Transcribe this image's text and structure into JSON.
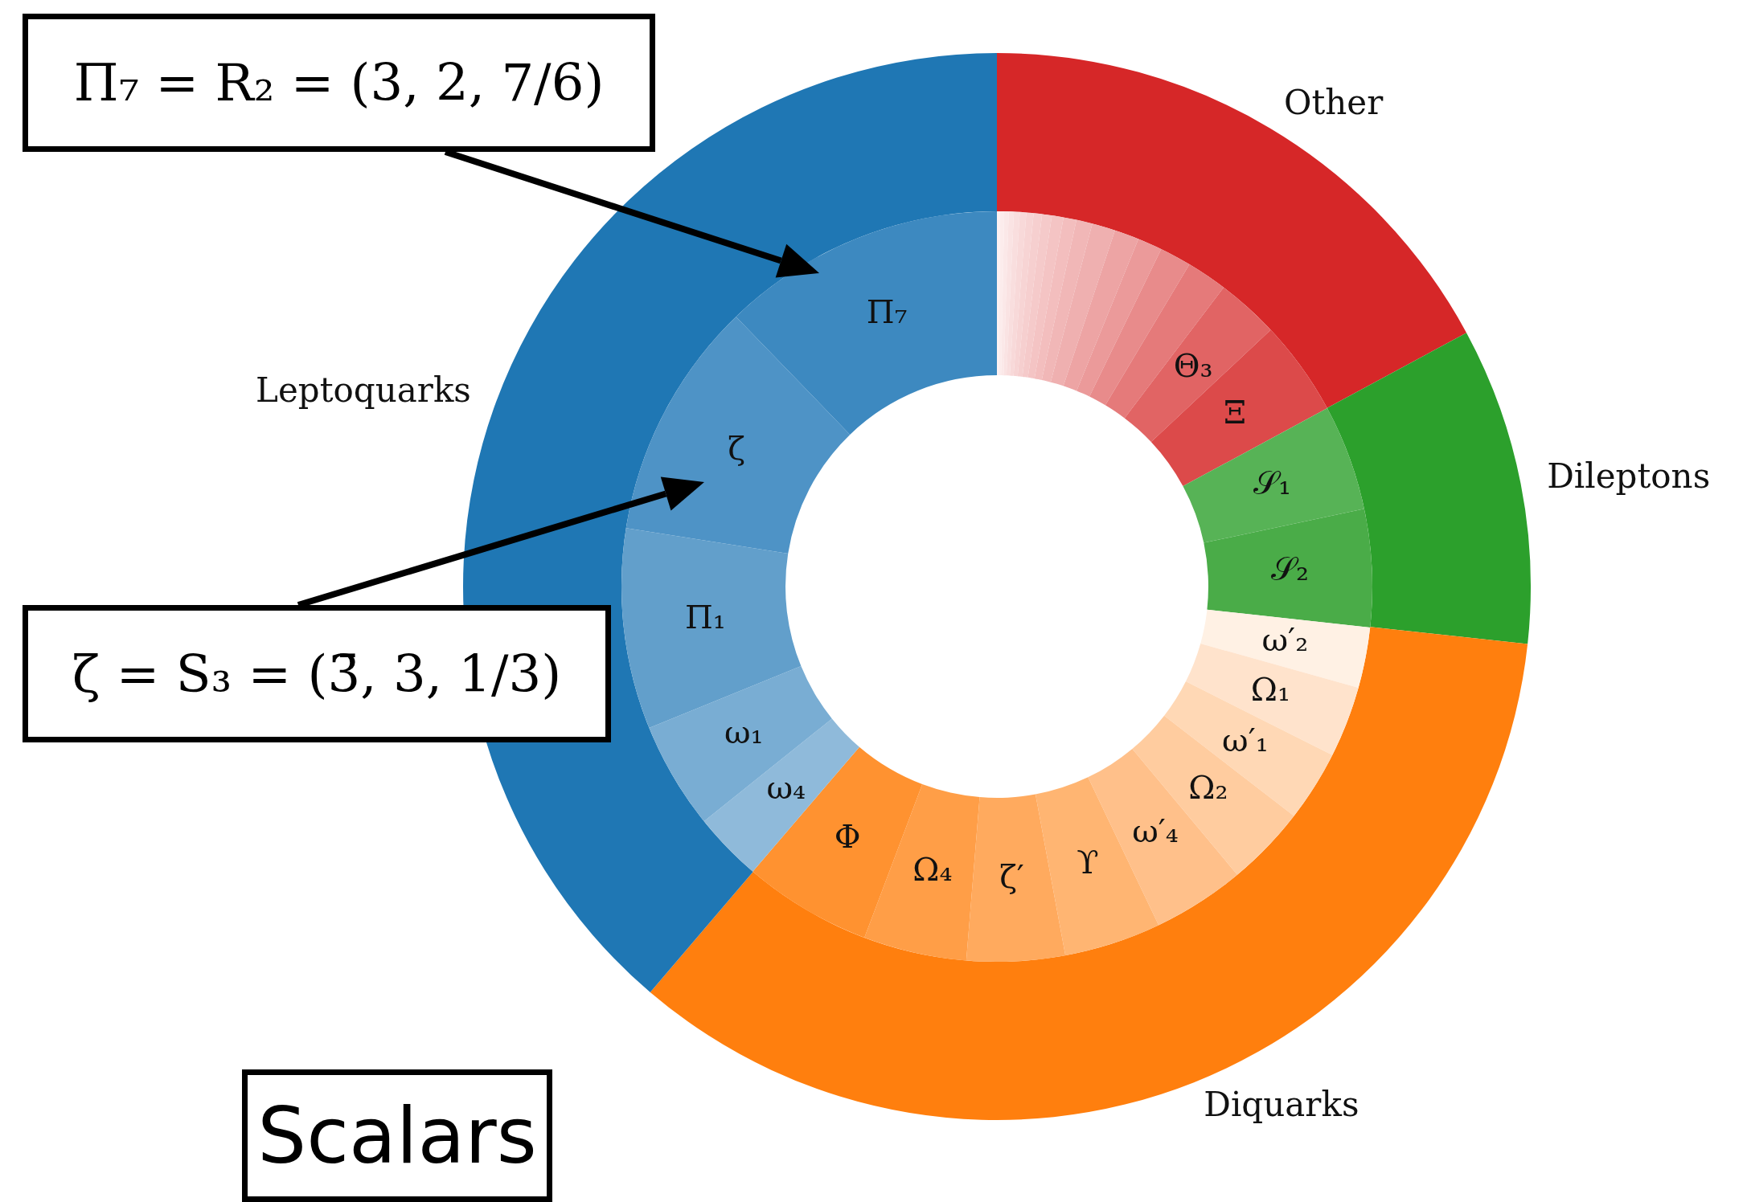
{
  "chart_data": [
    {
      "type": "donut",
      "categories": [
        "Other",
        "Dileptons",
        "Diquarks",
        "Leptoquarks"
      ],
      "values": [
        17.11,
        9.61,
        34.53,
        38.75
      ],
      "colors": [
        "#d62728",
        "#2ca02c",
        "#ff7f0e",
        "#1f77b4"
      ],
      "annotations": [
        "Π₇ = R₂ = (3, 2, 7/6)",
        "ζ = S₃ = (3̄, 3, 1/3)",
        "Scalars"
      ]
    },
    {
      "type": "donut",
      "categories": [
        null,
        null,
        null,
        null,
        null,
        null,
        null,
        null,
        null,
        null,
        null,
        null,
        null,
        null,
        null,
        null,
        null,
        "Θ₃",
        "Ξ",
        "𝒮₁",
        "𝒮₂",
        "ω′₂",
        "Ω₁",
        "ω′₁",
        "Ω₂",
        "ω′₄",
        "ϒ",
        "ζ′",
        "Ω₄",
        "Φ",
        "ω₄",
        "ω₁",
        "Π₁",
        "ζ",
        "Π₇"
      ],
      "values": [
        0.14,
        0.17,
        0.19,
        0.22,
        0.25,
        0.28,
        0.31,
        0.36,
        0.42,
        0.5,
        0.56,
        0.69,
        1.0,
        1.06,
        1.06,
        1.36,
        1.75,
        2.69,
        4.11,
        4.56,
        5.06,
        2.61,
        3.06,
        3.06,
        3.47,
        3.97,
        4.17,
        4.22,
        4.44,
        5.53,
        2.97,
        4.61,
        8.64,
        10.28,
        12.23
      ],
      "colors": [
        "#fdf1f1",
        "#fcecec",
        "#fbe8e8",
        "#fae3e3",
        "#f9dede",
        "#f8d9d9",
        "#f7d4d4",
        "#f6cfcf",
        "#f5caca",
        "#f4c4c4",
        "#f3bebe",
        "#f1b7b7",
        "#efb0b0",
        "#eda4a4",
        "#eb9a9a",
        "#e88b8b",
        "#e57a7a",
        "#e16464",
        "#dc4a4a",
        "#57b356",
        "#4aac48",
        "#fff1e4",
        "#ffe3cc",
        "#ffd8b5",
        "#ffcc9f",
        "#ffc08a",
        "#ffb572",
        "#ffaa5e",
        "#ff9e47",
        "#ff9230",
        "#8fbada",
        "#79add3",
        "#629fcb",
        "#4e93c6",
        "#3d89c0"
      ]
    }
  ]
}
